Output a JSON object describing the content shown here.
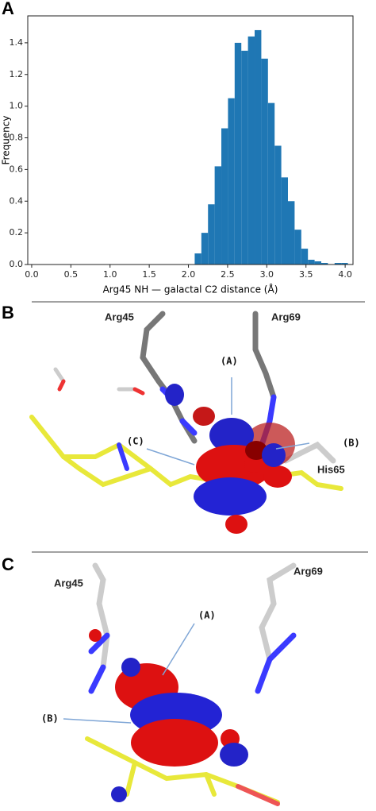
{
  "chart_data": {
    "type": "histogram",
    "panel_label": "A",
    "xlabel": "Arg45 NH — galactal C2 distance (Å)",
    "ylabel": "Frequency",
    "bins": [
      2.08,
      2.165,
      2.25,
      2.335,
      2.42,
      2.505,
      2.59,
      2.675,
      2.76,
      2.845,
      2.93,
      3.015,
      3.1,
      3.185,
      3.27,
      3.355,
      3.44,
      3.525,
      3.61,
      3.695,
      3.78,
      3.865,
      3.95,
      4.035
    ],
    "values": [
      0.07,
      0.2,
      0.38,
      0.62,
      0.86,
      1.05,
      1.4,
      1.35,
      1.44,
      1.48,
      1.3,
      1.02,
      0.75,
      0.55,
      0.4,
      0.22,
      0.1,
      0.03,
      0.02,
      0.01,
      0.0,
      0.01,
      0.01
    ],
    "color": "#1f77b4",
    "xlim": [
      -0.05,
      4.1
    ],
    "xticks": [
      {
        "value": 0,
        "label": "0.0"
      },
      0.5,
      {
        "value": 1,
        "label": "1.0"
      },
      1.5,
      {
        "value": 2,
        "label": "2.0"
      },
      2.5,
      {
        "value": 3,
        "label": "3.0"
      },
      3.5,
      {
        "value": 4,
        "label": "4.0"
      }
    ],
    "ylim": [
      0,
      1.57
    ],
    "yticks": [
      {
        "value": 0,
        "label": "0.0"
      },
      0.2,
      0.4,
      0.6,
      0.8,
      {
        "value": 1,
        "label": "1.0"
      },
      1.2,
      1.4
    ]
  },
  "panel_b": {
    "label": "B",
    "residues": [
      "Arg45",
      "Arg69",
      "His65"
    ],
    "callouts": [
      "(A)",
      "(B)",
      "(C)"
    ]
  },
  "panel_c": {
    "label": "C",
    "residues": [
      "Arg45",
      "Arg69"
    ],
    "callouts": [
      "(A)",
      "(B)"
    ]
  }
}
